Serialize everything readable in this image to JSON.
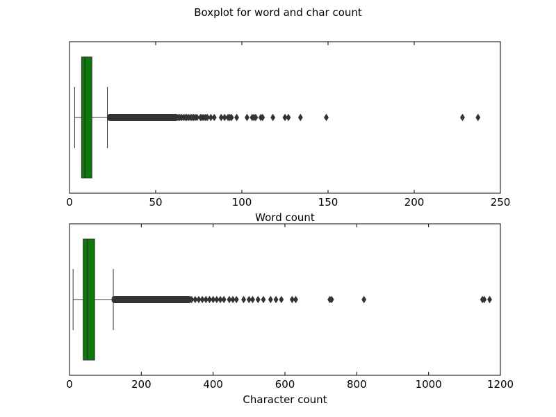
{
  "figure": {
    "title": "Boxplot for word and char count"
  },
  "chart_data": [
    {
      "type": "box",
      "orientation": "horizontal",
      "xlabel": "Word count",
      "xlim": [
        0,
        250
      ],
      "xticks": [
        0,
        50,
        100,
        150,
        200,
        250
      ],
      "box_color": "#0b7a0b",
      "stats": {
        "whisker_low": 3,
        "q1": 7,
        "median": 9,
        "q3": 13,
        "whisker_high": 22
      },
      "outlier_dense_range": [
        23,
        62
      ],
      "outliers": [
        63,
        64,
        65,
        66,
        67,
        68,
        69,
        70,
        71,
        72,
        73,
        74,
        76,
        77,
        78,
        79,
        80,
        82,
        84,
        88,
        90,
        92,
        93,
        94,
        97,
        103,
        106,
        107,
        108,
        111,
        112,
        118,
        125,
        127,
        134,
        149,
        228,
        237
      ]
    },
    {
      "type": "box",
      "orientation": "horizontal",
      "xlabel": "Character count",
      "xlim": [
        0,
        1200
      ],
      "xticks": [
        0,
        200,
        400,
        600,
        800,
        1000,
        1200
      ],
      "box_color": "#0b7a0b",
      "stats": {
        "whisker_low": 10,
        "q1": 38,
        "median": 50,
        "q3": 70,
        "whisker_high": 122
      },
      "outlier_dense_range": [
        123,
        335
      ],
      "outliers": [
        340,
        350,
        360,
        370,
        380,
        390,
        400,
        410,
        420,
        430,
        445,
        455,
        465,
        485,
        500,
        510,
        525,
        540,
        560,
        575,
        590,
        620,
        630,
        725,
        730,
        820,
        1150,
        1155,
        1170
      ]
    }
  ]
}
